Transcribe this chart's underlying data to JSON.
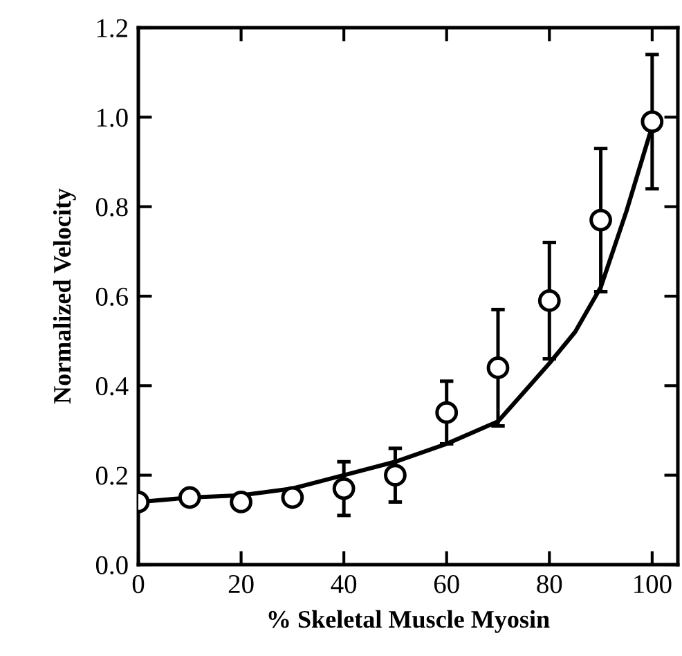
{
  "chart_data": {
    "type": "scatter",
    "xlabel": "% Skeletal Muscle Myosin",
    "ylabel": "Normalized Velocity",
    "xlim": [
      0,
      105
    ],
    "ylim": [
      0,
      1.2
    ],
    "xticks": [
      0,
      20,
      40,
      60,
      80,
      100
    ],
    "yticks": [
      {
        "value": 0,
        "label": "0.0"
      },
      0.2,
      0.4,
      0.6,
      0.8,
      {
        "value": 1,
        "label": "1.0"
      },
      1.2
    ],
    "grid": false,
    "legend": false,
    "series": [
      {
        "color": "#000000",
        "marker": "circle",
        "x": [
          0,
          10,
          20,
          30,
          40,
          50,
          60,
          70,
          80,
          90,
          100
        ],
        "values": [
          0.14,
          0.15,
          0.14,
          0.15,
          0.17,
          0.2,
          0.34,
          0.44,
          0.59,
          0.77,
          0.99
        ],
        "errors": [
          null,
          null,
          null,
          null,
          0.06,
          0.06,
          0.07,
          0.13,
          0.13,
          0.16,
          0.15
        ]
      },
      {
        "type": "line",
        "color": "#000000",
        "line_style": "solid",
        "x": [
          0,
          10,
          20,
          30,
          40,
          50,
          60,
          70,
          80,
          85,
          90,
          95,
          100
        ],
        "values": [
          0.14,
          0.15,
          0.155,
          0.17,
          0.2,
          0.23,
          0.27,
          0.32,
          0.45,
          0.52,
          0.62,
          0.79,
          0.98
        ]
      }
    ]
  }
}
